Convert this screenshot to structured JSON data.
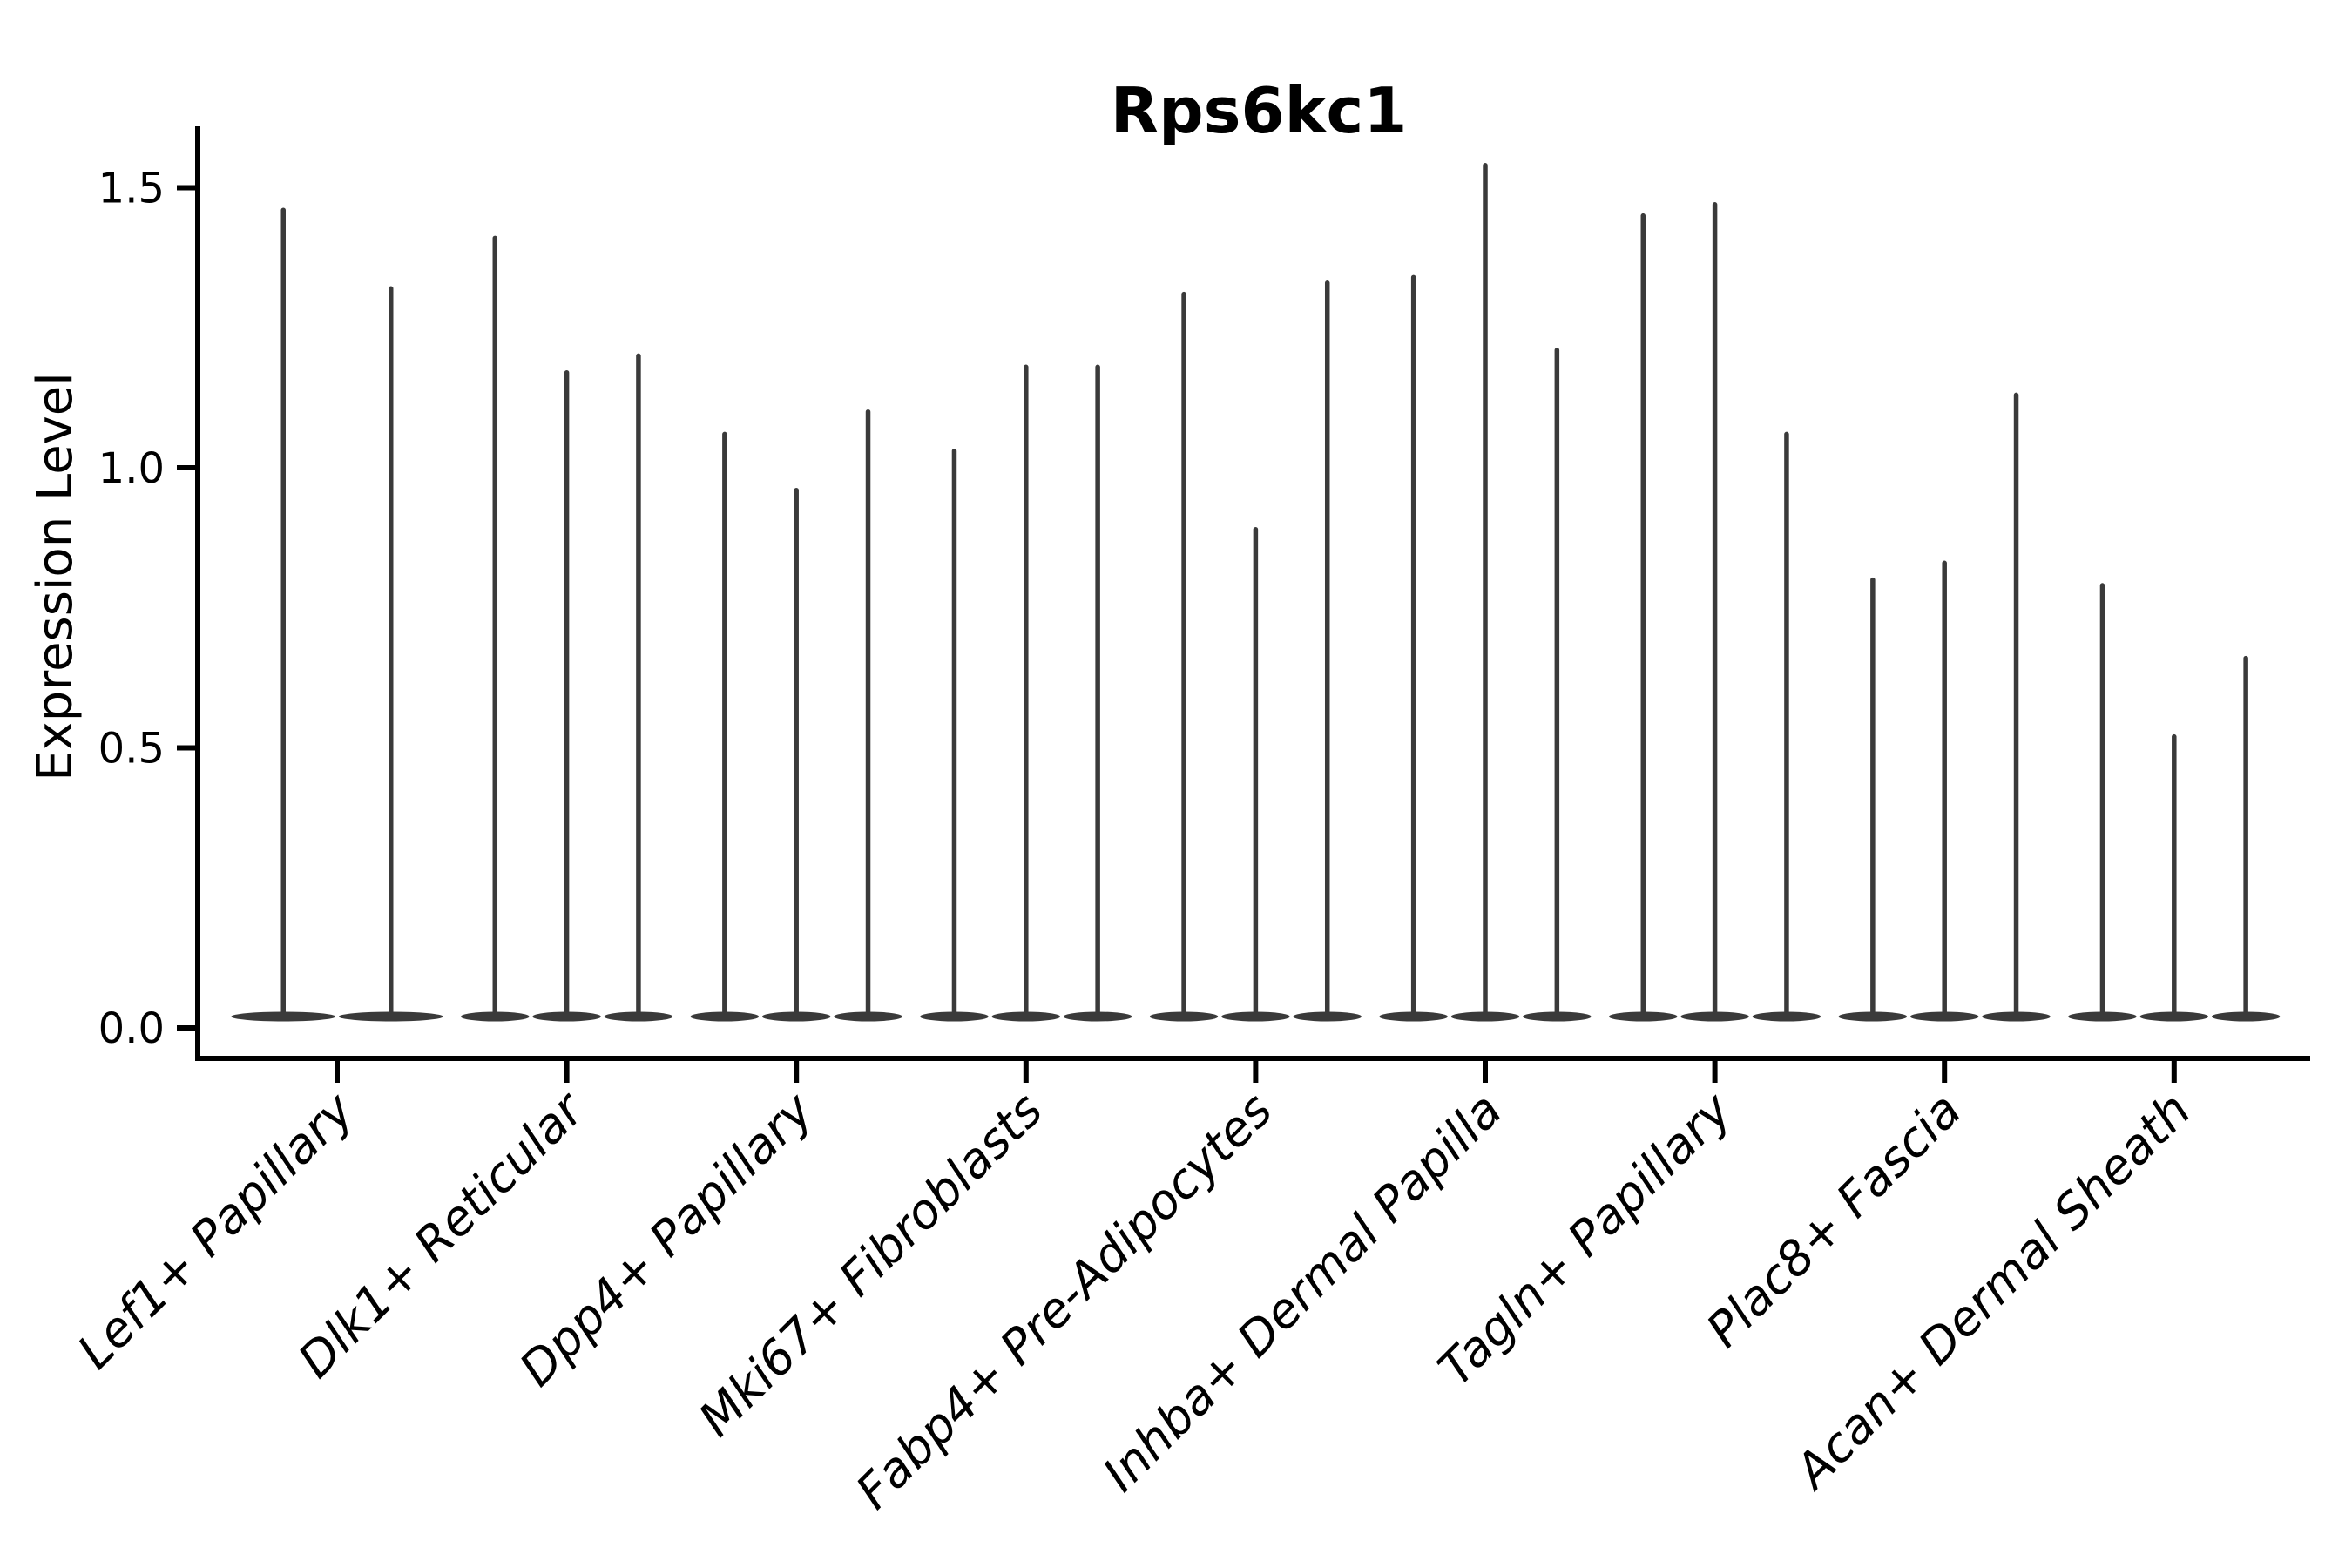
{
  "figure": {
    "background": "#FFFFFF"
  },
  "chart_data": {
    "type": "violin",
    "title": "Rps6kc1",
    "ylabel": "Expression Level",
    "xlabel": "",
    "legend": "none",
    "grid": false,
    "ylim": [
      -0.05,
      1.65
    ],
    "y_ticks": {
      "values": [
        0.0,
        0.5,
        1.0,
        1.5
      ],
      "labels": [
        "0.0",
        "0.5",
        "1.0",
        "1.5"
      ]
    },
    "categories": [
      "Lef1+ Papillary",
      "Dlk1+ Reticular",
      "Dpp4+ Papillary",
      "Mki67+ Fibroblasts",
      "Fabp4+ Pre-Adipocytes",
      "Inhba+ Dermal Papilla",
      "Tagln+ Papillary",
      "Plac8+ Fascia",
      "Acan+ Dermal Sheath"
    ],
    "distribution_shape": "expression mass concentrated at 0 with a thin density spike reaching the maximum value per violin",
    "groups": [
      {
        "category": "Lef1+ Papillary",
        "violin_max_expression": [
          1.46,
          1.32
        ]
      },
      {
        "category": "Dlk1+ Reticular",
        "violin_max_expression": [
          1.41,
          1.17,
          1.2
        ]
      },
      {
        "category": "Dpp4+ Papillary",
        "violin_max_expression": [
          1.06,
          0.96,
          1.1
        ]
      },
      {
        "category": "Mki67+ Fibroblasts",
        "violin_max_expression": [
          1.03,
          1.18,
          1.18
        ]
      },
      {
        "category": "Fabp4+ Pre-Adipocytes",
        "violin_max_expression": [
          1.31,
          0.89,
          1.33
        ]
      },
      {
        "category": "Inhba+ Dermal Papilla",
        "violin_max_expression": [
          1.34,
          1.54,
          1.21
        ]
      },
      {
        "category": "Tagln+ Papillary",
        "violin_max_expression": [
          1.45,
          1.47,
          1.06
        ]
      },
      {
        "category": "Plac8+ Fascia",
        "violin_max_expression": [
          0.8,
          0.83,
          1.13
        ]
      },
      {
        "category": "Acan+ Dermal Sheath",
        "violin_max_expression": [
          0.79,
          0.52,
          0.66
        ]
      }
    ],
    "violin_color": "#3A3A3A",
    "axis_color": "#000000"
  }
}
